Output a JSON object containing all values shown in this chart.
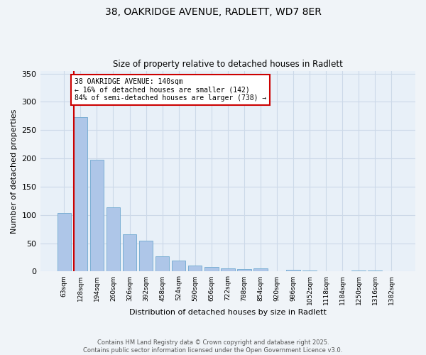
{
  "title1": "38, OAKRIDGE AVENUE, RADLETT, WD7 8ER",
  "title2": "Size of property relative to detached houses in Radlett",
  "xlabel": "Distribution of detached houses by size in Radlett",
  "ylabel": "Number of detached properties",
  "categories": [
    "63sqm",
    "128sqm",
    "194sqm",
    "260sqm",
    "326sqm",
    "392sqm",
    "458sqm",
    "524sqm",
    "590sqm",
    "656sqm",
    "722sqm",
    "788sqm",
    "854sqm",
    "920sqm",
    "986sqm",
    "1052sqm",
    "1118sqm",
    "1184sqm",
    "1250sqm",
    "1316sqm",
    "1382sqm"
  ],
  "values": [
    103,
    273,
    197,
    114,
    66,
    55,
    27,
    19,
    11,
    8,
    5,
    4,
    5,
    0,
    3,
    2,
    0,
    0,
    2,
    2,
    1
  ],
  "bar_color": "#aec6e8",
  "bar_edge_color": "#7bafd4",
  "vline_color": "#cc0000",
  "annotation_text": "38 OAKRIDGE AVENUE: 140sqm\n← 16% of detached houses are smaller (142)\n84% of semi-detached houses are larger (738) →",
  "annotation_box_color": "#cc0000",
  "ylim": [
    0,
    355
  ],
  "yticks": [
    0,
    50,
    100,
    150,
    200,
    250,
    300,
    350
  ],
  "grid_color": "#ccd9e8",
  "bg_color": "#e8f0f8",
  "fig_bg_color": "#f0f4f8",
  "footer": "Contains HM Land Registry data © Crown copyright and database right 2025.\nContains public sector information licensed under the Open Government Licence v3.0."
}
